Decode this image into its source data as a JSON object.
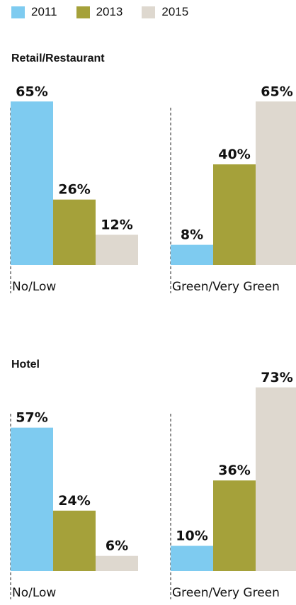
{
  "legend": [
    {
      "label": "2011",
      "color": "#7ecbf0"
    },
    {
      "label": "2013",
      "color": "#a5a13a"
    },
    {
      "label": "2015",
      "color": "#ded8cf"
    }
  ],
  "chart_data": [
    {
      "type": "bar",
      "title": "Retail/Restaurant",
      "categories": [
        "No/Low",
        "Green/Very Green"
      ],
      "series": [
        {
          "name": "2011",
          "values": [
            65,
            8
          ],
          "labels": [
            "65%",
            "8%"
          ]
        },
        {
          "name": "2013",
          "values": [
            26,
            40
          ],
          "labels": [
            "26%",
            "40%"
          ]
        },
        {
          "name": "2015",
          "values": [
            12,
            65
          ],
          "labels": [
            "12%",
            "65%"
          ]
        }
      ],
      "unit": "%",
      "grid": false,
      "legend_position": "top-left"
    },
    {
      "type": "bar",
      "title": "Hotel",
      "categories": [
        "No/Low",
        "Green/Very Green"
      ],
      "series": [
        {
          "name": "2011",
          "values": [
            57,
            10
          ],
          "labels": [
            "57%",
            "10%"
          ]
        },
        {
          "name": "2013",
          "values": [
            24,
            36
          ],
          "labels": [
            "24%",
            "36%"
          ]
        },
        {
          "name": "2015",
          "values": [
            6,
            73
          ],
          "labels": [
            "6%",
            "73%"
          ]
        }
      ],
      "unit": "%",
      "grid": false,
      "legend_position": "top-left"
    }
  ]
}
